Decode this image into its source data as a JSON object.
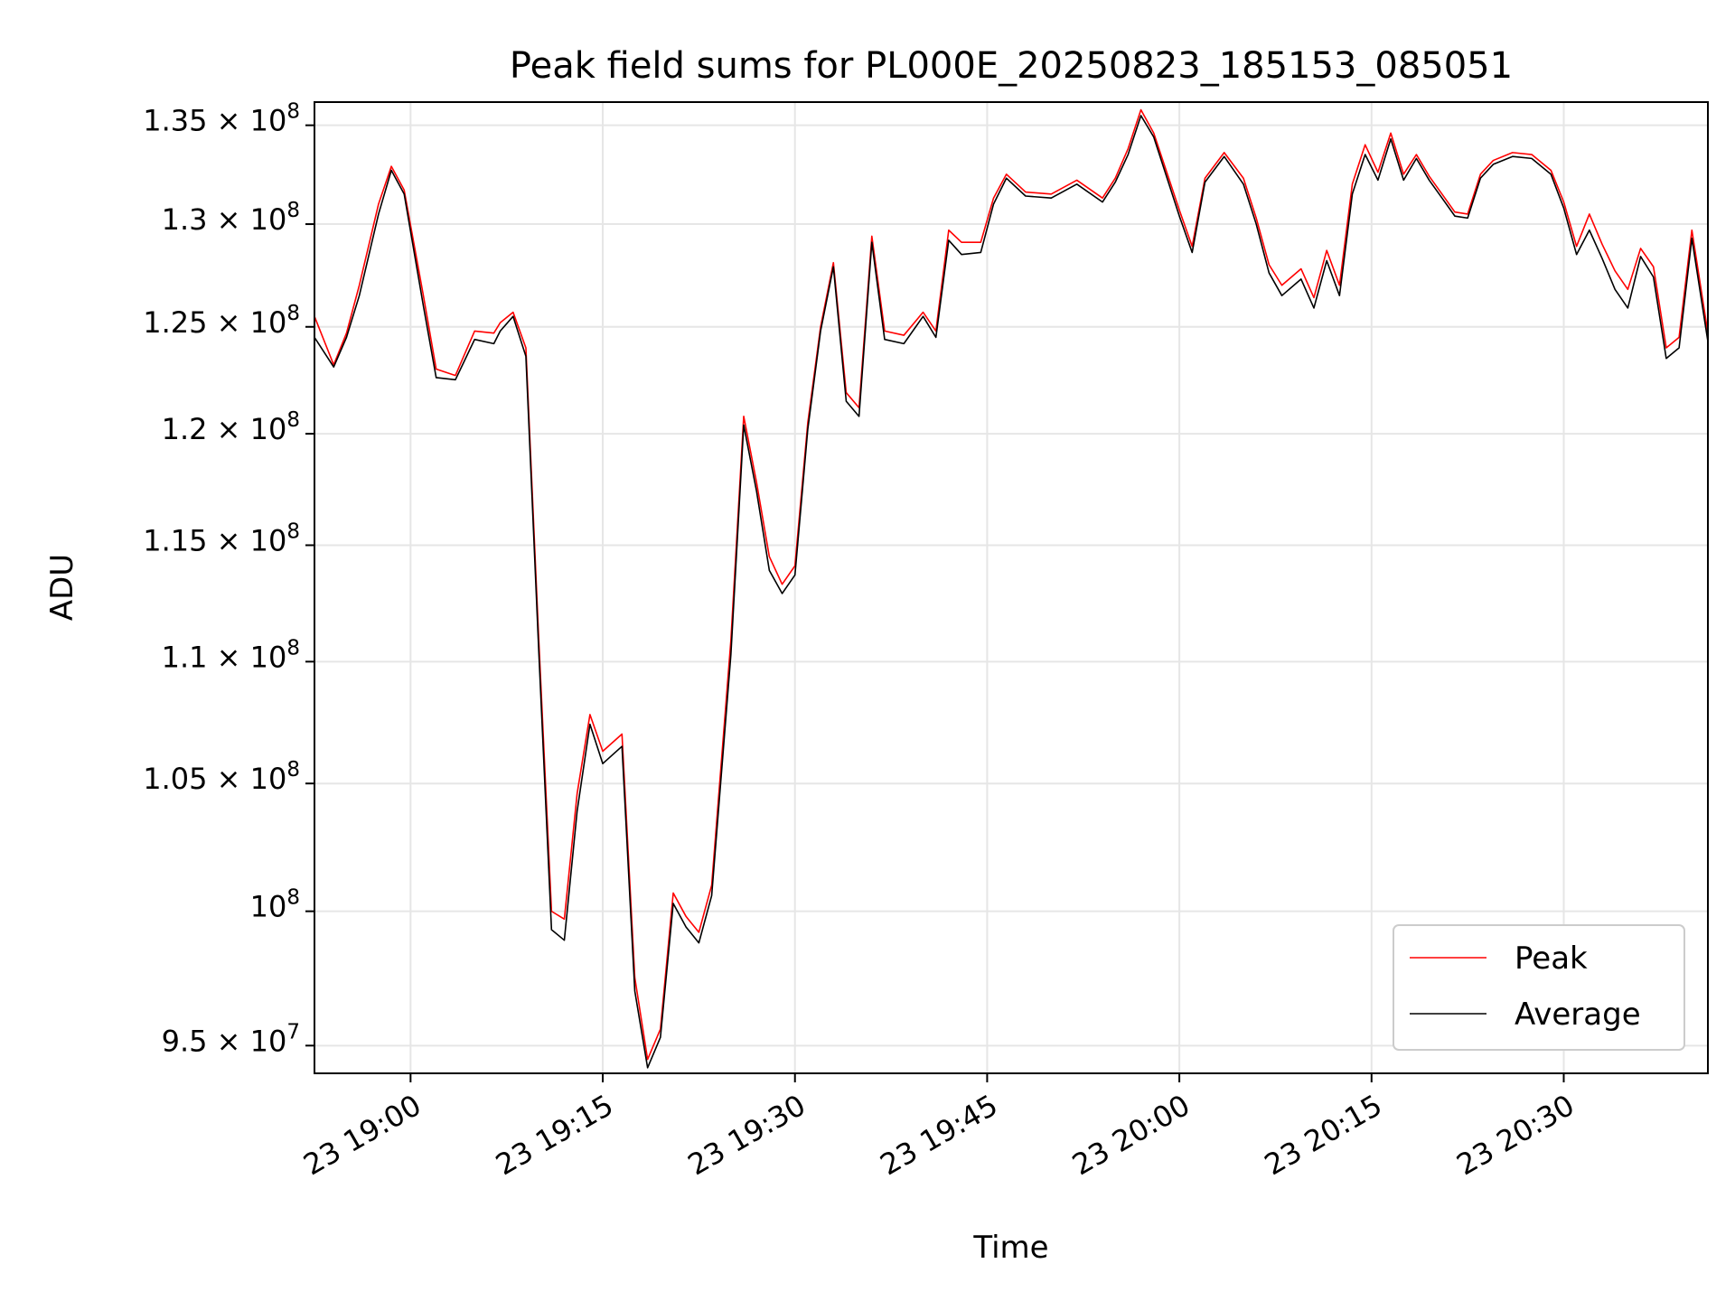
{
  "chart_data": {
    "type": "line",
    "title": "Peak field sums for PL000E_20250823_185153_085051",
    "xlabel": "Time",
    "ylabel": "ADU",
    "x_range": [
      "2025-08-23 18:52:30",
      "2025-08-23 20:41:15"
    ],
    "ylim": [
      94000000,
      136200000
    ],
    "y_scale": "log",
    "grid": true,
    "legend_position": "lower right",
    "y_ticks": [
      {
        "value": 95000000,
        "mantissa": "9.5",
        "exponent": "7"
      },
      {
        "value": 100000000,
        "mantissa": "",
        "exponent": "8"
      },
      {
        "value": 105000000,
        "mantissa": "1.05",
        "exponent": "8"
      },
      {
        "value": 110000000,
        "mantissa": "1.1",
        "exponent": "8"
      },
      {
        "value": 115000000,
        "mantissa": "1.15",
        "exponent": "8"
      },
      {
        "value": 120000000,
        "mantissa": "1.2",
        "exponent": "8"
      },
      {
        "value": 125000000,
        "mantissa": "1.25",
        "exponent": "8"
      },
      {
        "value": 130000000,
        "mantissa": "1.3",
        "exponent": "8"
      },
      {
        "value": 135000000,
        "mantissa": "1.35",
        "exponent": "8"
      }
    ],
    "x_ticks": [
      {
        "time": "2025-08-23 19:00",
        "label": "23 19:00"
      },
      {
        "time": "2025-08-23 19:15",
        "label": "23 19:15"
      },
      {
        "time": "2025-08-23 19:30",
        "label": "23 19:30"
      },
      {
        "time": "2025-08-23 19:45",
        "label": "23 19:45"
      },
      {
        "time": "2025-08-23 20:00",
        "label": "23 20:00"
      },
      {
        "time": "2025-08-23 20:15",
        "label": "23 20:15"
      },
      {
        "time": "2025-08-23 20:30",
        "label": "23 20:30"
      }
    ],
    "x": [
      "2025-08-23 18:52:30",
      "2025-08-23 18:54:00",
      "2025-08-23 18:55:00",
      "2025-08-23 18:56:00",
      "2025-08-23 18:57:30",
      "2025-08-23 18:58:30",
      "2025-08-23 18:59:30",
      "2025-08-23 19:01:00",
      "2025-08-23 19:02:00",
      "2025-08-23 19:03:30",
      "2025-08-23 19:05:00",
      "2025-08-23 19:06:30",
      "2025-08-23 19:07:00",
      "2025-08-23 19:08:00",
      "2025-08-23 19:09:00",
      "2025-08-23 19:10:00",
      "2025-08-23 19:11:00",
      "2025-08-23 19:12:00",
      "2025-08-23 19:13:00",
      "2025-08-23 19:14:00",
      "2025-08-23 19:15:00",
      "2025-08-23 19:16:30",
      "2025-08-23 19:17:30",
      "2025-08-23 19:18:30",
      "2025-08-23 19:19:30",
      "2025-08-23 19:20:30",
      "2025-08-23 19:21:30",
      "2025-08-23 19:22:30",
      "2025-08-23 19:23:30",
      "2025-08-23 19:25:00",
      "2025-08-23 19:26:00",
      "2025-08-23 19:27:00",
      "2025-08-23 19:28:00",
      "2025-08-23 19:29:00",
      "2025-08-23 19:30:00",
      "2025-08-23 19:31:00",
      "2025-08-23 19:32:00",
      "2025-08-23 19:33:00",
      "2025-08-23 19:34:00",
      "2025-08-23 19:35:00",
      "2025-08-23 19:36:00",
      "2025-08-23 19:37:00",
      "2025-08-23 19:38:30",
      "2025-08-23 19:40:00",
      "2025-08-23 19:41:00",
      "2025-08-23 19:42:00",
      "2025-08-23 19:43:00",
      "2025-08-23 19:44:30",
      "2025-08-23 19:45:30",
      "2025-08-23 19:46:30",
      "2025-08-23 19:48:00",
      "2025-08-23 19:50:00",
      "2025-08-23 19:52:00",
      "2025-08-23 19:54:00",
      "2025-08-23 19:55:00",
      "2025-08-23 19:56:00",
      "2025-08-23 19:57:00",
      "2025-08-23 19:58:00",
      "2025-08-23 20:00:00",
      "2025-08-23 20:01:00",
      "2025-08-23 20:02:00",
      "2025-08-23 20:03:30",
      "2025-08-23 20:05:00",
      "2025-08-23 20:06:00",
      "2025-08-23 20:07:00",
      "2025-08-23 20:08:00",
      "2025-08-23 20:09:30",
      "2025-08-23 20:10:30",
      "2025-08-23 20:11:30",
      "2025-08-23 20:12:30",
      "2025-08-23 20:13:30",
      "2025-08-23 20:14:30",
      "2025-08-23 20:15:30",
      "2025-08-23 20:16:30",
      "2025-08-23 20:17:30",
      "2025-08-23 20:18:30",
      "2025-08-23 20:19:30",
      "2025-08-23 20:20:30",
      "2025-08-23 20:21:30",
      "2025-08-23 20:22:30",
      "2025-08-23 20:23:30",
      "2025-08-23 20:24:30",
      "2025-08-23 20:26:00",
      "2025-08-23 20:27:30",
      "2025-08-23 20:29:00",
      "2025-08-23 20:30:00",
      "2025-08-23 20:31:00",
      "2025-08-23 20:32:00",
      "2025-08-23 20:33:00",
      "2025-08-23 20:34:00",
      "2025-08-23 20:35:00",
      "2025-08-23 20:36:00",
      "2025-08-23 20:37:00",
      "2025-08-23 20:38:00",
      "2025-08-23 20:39:00",
      "2025-08-23 20:40:00",
      "2025-08-23 20:41:15"
    ],
    "series": [
      {
        "name": "Peak",
        "color": "#ff0000",
        "values": [
          125500000,
          123200000,
          124700000,
          127000000,
          131000000,
          132900000,
          131700000,
          126500000,
          123000000,
          122700000,
          124800000,
          124700000,
          125200000,
          125700000,
          124000000,
          111000000,
          100000000,
          99700000,
          104600000,
          107800000,
          106300000,
          107000000,
          97500000,
          94500000,
          95600000,
          100700000,
          99800000,
          99200000,
          101000000,
          110900000,
          120800000,
          117800000,
          114500000,
          113300000,
          114100000,
          120500000,
          125000000,
          128100000,
          121900000,
          121200000,
          129400000,
          124800000,
          124600000,
          125700000,
          124800000,
          129700000,
          129100000,
          129100000,
          131300000,
          132500000,
          131600000,
          131500000,
          132200000,
          131300000,
          132300000,
          133800000,
          135800000,
          134600000,
          130700000,
          128900000,
          132300000,
          133600000,
          132300000,
          130300000,
          128000000,
          127000000,
          127800000,
          126400000,
          128700000,
          127000000,
          132000000,
          134000000,
          132600000,
          134600000,
          132500000,
          133500000,
          132400000,
          131500000,
          130600000,
          130500000,
          132500000,
          133200000,
          133600000,
          133500000,
          132700000,
          131100000,
          128900000,
          130500000,
          129000000,
          127700000,
          126800000,
          128800000,
          127900000,
          124000000,
          124500000,
          129700000,
          124700000
        ]
      },
      {
        "name": "Average",
        "color": "#000000",
        "values": [
          124500000,
          123100000,
          124500000,
          126500000,
          130500000,
          132700000,
          131500000,
          126000000,
          122600000,
          122500000,
          124400000,
          124200000,
          124800000,
          125500000,
          123600000,
          110500000,
          99300000,
          98900000,
          103900000,
          107400000,
          105800000,
          106500000,
          97000000,
          94200000,
          95300000,
          100300000,
          99400000,
          98800000,
          100600000,
          110300000,
          120400000,
          117400000,
          113900000,
          112900000,
          113700000,
          120200000,
          124800000,
          127900000,
          121500000,
          120800000,
          129100000,
          124400000,
          124200000,
          125500000,
          124500000,
          129200000,
          128500000,
          128600000,
          131000000,
          132300000,
          131400000,
          131300000,
          132000000,
          131100000,
          132100000,
          133500000,
          135500000,
          134400000,
          130400000,
          128600000,
          132100000,
          133400000,
          132000000,
          130000000,
          127600000,
          126500000,
          127300000,
          125900000,
          128200000,
          126500000,
          131500000,
          133500000,
          132200000,
          134300000,
          132200000,
          133300000,
          132200000,
          131300000,
          130400000,
          130300000,
          132300000,
          133000000,
          133400000,
          133300000,
          132500000,
          130800000,
          128500000,
          129700000,
          128300000,
          126800000,
          125900000,
          128400000,
          127400000,
          123500000,
          124000000,
          129300000,
          124300000
        ]
      }
    ]
  }
}
